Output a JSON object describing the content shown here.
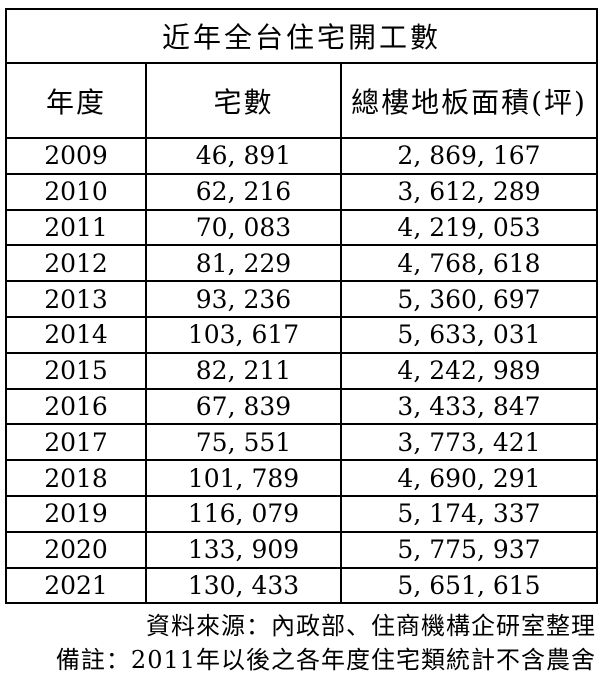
{
  "table": {
    "title": "近年全台住宅開工數",
    "columns": [
      "年度",
      "宅數",
      "總樓地板面積(坪)"
    ],
    "rows": [
      [
        "2009",
        "46, 891",
        "2, 869, 167"
      ],
      [
        "2010",
        "62, 216",
        "3, 612, 289"
      ],
      [
        "2011",
        "70, 083",
        "4, 219, 053"
      ],
      [
        "2012",
        "81, 229",
        "4, 768, 618"
      ],
      [
        "2013",
        "93, 236",
        "5, 360, 697"
      ],
      [
        "2014",
        "103, 617",
        "5, 633, 031"
      ],
      [
        "2015",
        "82, 211",
        "4, 242, 989"
      ],
      [
        "2016",
        "67, 839",
        "3, 433, 847"
      ],
      [
        "2017",
        "75, 551",
        "3, 773, 421"
      ],
      [
        "2018",
        "101, 789",
        "4, 690, 291"
      ],
      [
        "2019",
        "116, 079",
        "5, 174, 337"
      ],
      [
        "2020",
        "133, 909",
        "5, 775, 937"
      ],
      [
        "2021",
        "130, 433",
        "5, 651, 615"
      ]
    ]
  },
  "footer": {
    "source": "資料來源：內政部、住商機構企研室整理",
    "note": "備註：2011年以後之各年度住宅類統計不含農舍"
  },
  "colors": {
    "text": "#000000",
    "border": "#000000",
    "background": "#ffffff"
  },
  "chart_data": {
    "type": "table",
    "title": "近年全台住宅開工數",
    "columns": [
      "年度",
      "宅數",
      "總樓地板面積(坪)"
    ],
    "categories": [
      2009,
      2010,
      2011,
      2012,
      2013,
      2014,
      2015,
      2016,
      2017,
      2018,
      2019,
      2020,
      2021
    ],
    "series": [
      {
        "name": "宅數",
        "values": [
          46891,
          62216,
          70083,
          81229,
          93236,
          103617,
          82211,
          67839,
          75551,
          101789,
          116079,
          133909,
          130433
        ]
      },
      {
        "name": "總樓地板面積(坪)",
        "values": [
          2869167,
          3612289,
          4219053,
          4768618,
          5360697,
          5633031,
          4242989,
          3433847,
          3773421,
          4690291,
          5174337,
          5775937,
          5651615
        ]
      }
    ],
    "source_note": "資料來源：內政部、住商機構企研室整理",
    "remark": "備註：2011年以後之各年度住宅類統計不含農舍"
  }
}
